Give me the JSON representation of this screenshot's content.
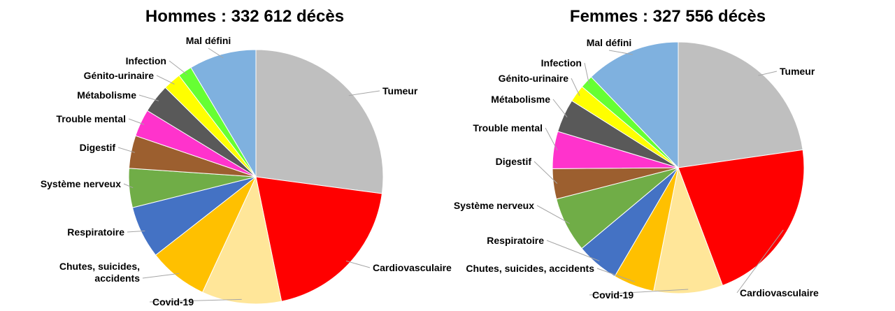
{
  "chart_data": [
    {
      "type": "pie",
      "title": "Hommes : 332 612 décès",
      "start_angle_deg": 0,
      "direction": "clockwise",
      "slices": [
        {
          "label": "Tumeur",
          "value": 27.3,
          "color": "#bfbfbf"
        },
        {
          "label": "Cardiovasculaire",
          "value": 19.8,
          "color": "#ff0000"
        },
        {
          "label": "Covid-19",
          "value": 10.2,
          "color": "#ffe699"
        },
        {
          "label": [
            "Chutes, suicides,",
            "accidents"
          ],
          "value": 7.6,
          "color": "#ffc000"
        },
        {
          "label": "Respiratoire",
          "value": 6.7,
          "color": "#4472c4"
        },
        {
          "label": "Système nerveux",
          "value": 5.0,
          "color": "#70ad47"
        },
        {
          "label": "Digestif",
          "value": 4.2,
          "color": "#9c5f2f"
        },
        {
          "label": "Trouble mental",
          "value": 3.5,
          "color": "#ff33cc"
        },
        {
          "label": "Métabolisme",
          "value": 3.7,
          "color": "#595959"
        },
        {
          "label": "Génito-urinaire",
          "value": 2.3,
          "color": "#ffff00"
        },
        {
          "label": "Infection",
          "value": 1.8,
          "color": "#66ff33"
        },
        {
          "label": "Mal défini",
          "value": 8.6,
          "color": "#7fb1df"
        }
      ]
    },
    {
      "type": "pie",
      "title": "Femmes : 327 556 décès",
      "start_angle_deg": 0,
      "direction": "clockwise",
      "slices": [
        {
          "label": "Tumeur",
          "value": 22.8,
          "color": "#bfbfbf"
        },
        {
          "label": "Cardiovasculaire",
          "value": 21.6,
          "color": "#ff0000"
        },
        {
          "label": "Covid-19",
          "value": 8.9,
          "color": "#ffe699"
        },
        {
          "label": "Chutes, suicides, accidents",
          "value": 5.3,
          "color": "#ffc000"
        },
        {
          "label": "Respiratoire",
          "value": 5.5,
          "color": "#4472c4"
        },
        {
          "label": "Système nerveux",
          "value": 7.1,
          "color": "#70ad47"
        },
        {
          "label": "Digestif",
          "value": 3.9,
          "color": "#9c5f2f"
        },
        {
          "label": "Trouble mental",
          "value": 4.8,
          "color": "#ff33cc"
        },
        {
          "label": "Métabolisme",
          "value": 4.3,
          "color": "#595959"
        },
        {
          "label": "Génito-urinaire",
          "value": 2.2,
          "color": "#ffff00"
        },
        {
          "label": "Infection",
          "value": 1.7,
          "color": "#66ff33"
        },
        {
          "label": "Mal défini",
          "value": 12.2,
          "color": "#7fb1df"
        }
      ]
    }
  ]
}
